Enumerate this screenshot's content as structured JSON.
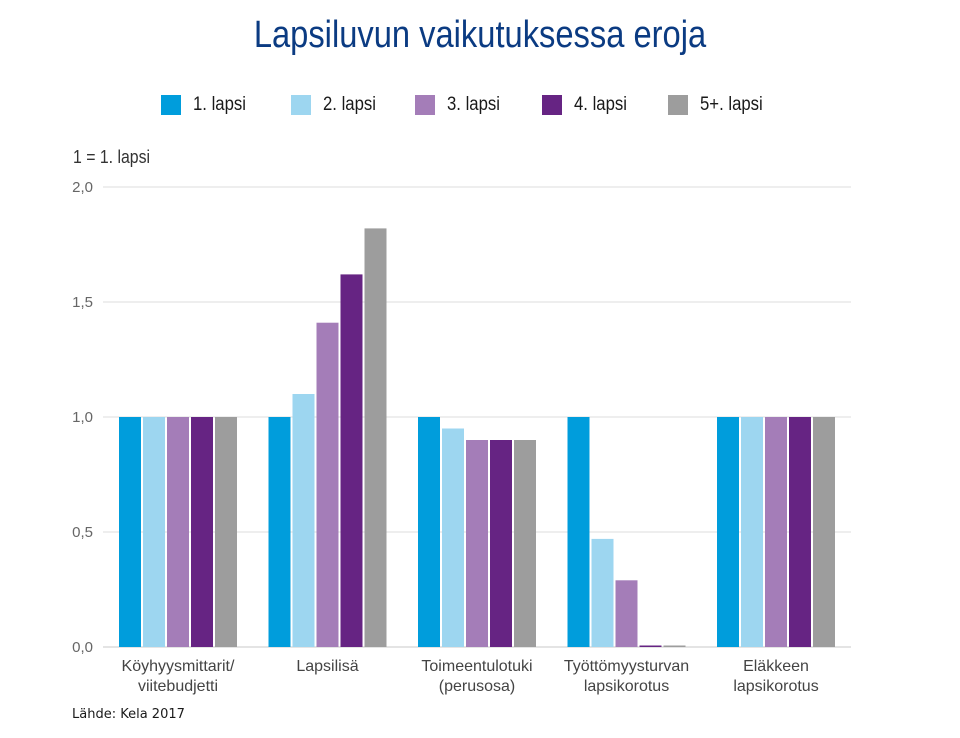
{
  "title": "Lapsiluvun vaikutuksessa eroja",
  "unit_label": "1 = 1. lapsi",
  "source": "Lähde: Kela 2017",
  "chart_data": {
    "type": "bar",
    "title": "Lapsiluvun vaikutuksessa eroja",
    "ylabel": "1 = 1. lapsi",
    "xlabel": "",
    "ylim": [
      0,
      2.0
    ],
    "yticks": [
      0.0,
      0.5,
      1.0,
      1.5,
      2.0
    ],
    "ytick_labels": [
      "0,0",
      "0,5",
      "1,0",
      "1,5",
      "2,0"
    ],
    "grid": true,
    "legend_position": "top",
    "categories": [
      [
        "Köyhyysmittarit/",
        "viitebudjetti"
      ],
      [
        "Lapsilisä"
      ],
      [
        "Toimeentulotuki",
        "(perusosa)"
      ],
      [
        "Työttömyysturvan",
        "lapsikorotus"
      ],
      [
        "Eläkkeen",
        "lapsikorotus"
      ]
    ],
    "series": [
      {
        "name": "1. lapsi",
        "color": "#009ddc",
        "values": [
          1.0,
          1.0,
          1.0,
          1.0,
          1.0
        ]
      },
      {
        "name": "2. lapsi",
        "color": "#9dd6f0",
        "values": [
          1.0,
          1.1,
          0.95,
          0.47,
          1.0
        ]
      },
      {
        "name": "3. lapsi",
        "color": "#a47db8",
        "values": [
          1.0,
          1.41,
          0.9,
          0.29,
          1.0
        ]
      },
      {
        "name": "4. lapsi",
        "color": "#662483",
        "values": [
          1.0,
          1.62,
          0.9,
          0.0,
          1.0
        ]
      },
      {
        "name": "5+. lapsi",
        "color": "#9d9d9d",
        "values": [
          1.0,
          1.82,
          0.9,
          0.0,
          1.0
        ]
      }
    ]
  }
}
